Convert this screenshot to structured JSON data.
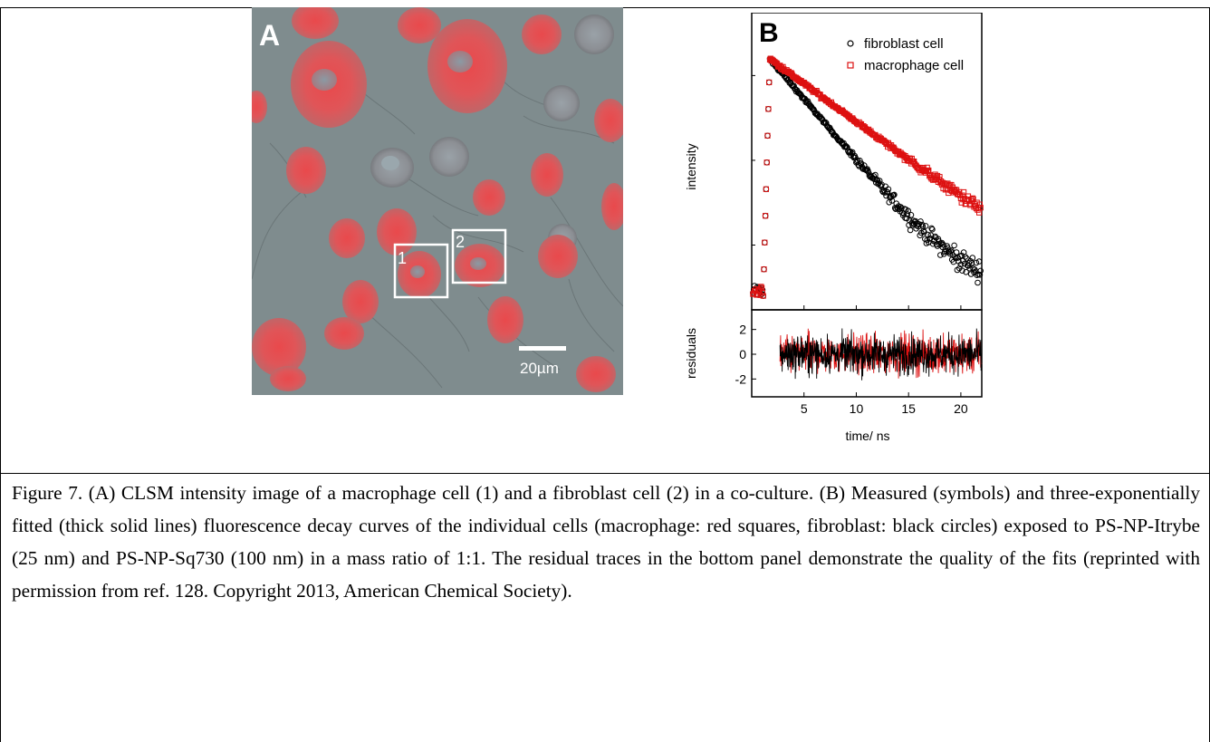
{
  "panel_a": {
    "label": "A",
    "box_labels": [
      "1",
      "2"
    ],
    "scalebar_label": "20µm"
  },
  "chart_data": {
    "type": "scatter",
    "panel_label": "B",
    "xlabel": "time/ ns",
    "ylabel": "intensity",
    "residuals_ylabel": "residuals",
    "xlim": [
      0,
      22
    ],
    "xticks": [
      5,
      10,
      15,
      20
    ],
    "y_scale": "log",
    "residuals_ylim": [
      -3,
      3
    ],
    "residuals_yticks": [
      2,
      0,
      -2
    ],
    "legend_position": "top-right",
    "series": [
      {
        "name": "fibroblast cell",
        "marker": "circle",
        "color": "#000000",
        "peak_time": 1.7,
        "lifetime": 3.0
      },
      {
        "name": "macrophage cell",
        "marker": "square",
        "color": "#dd1111",
        "peak_time": 1.7,
        "lifetime": 4.8
      }
    ]
  },
  "caption": {
    "text": "Figure 7. (A) CLSM intensity image of a macrophage cell (1) and a fibroblast cell (2) in a co-culture. (B) Measured (symbols) and three-exponentially fitted (thick solid lines) fluorescence decay curves of the individual cells (macrophage: red squares, fibroblast: black circles) exposed to PS-NP-Itrybe (25 nm) and PS-NP-Sq730 (100 nm) in a mass ratio of 1:1. The residual traces in the bottom panel demonstrate the quality of the fits (reprinted with permission from ref. 128. Copyright 2013, American Chemical Society)."
  }
}
